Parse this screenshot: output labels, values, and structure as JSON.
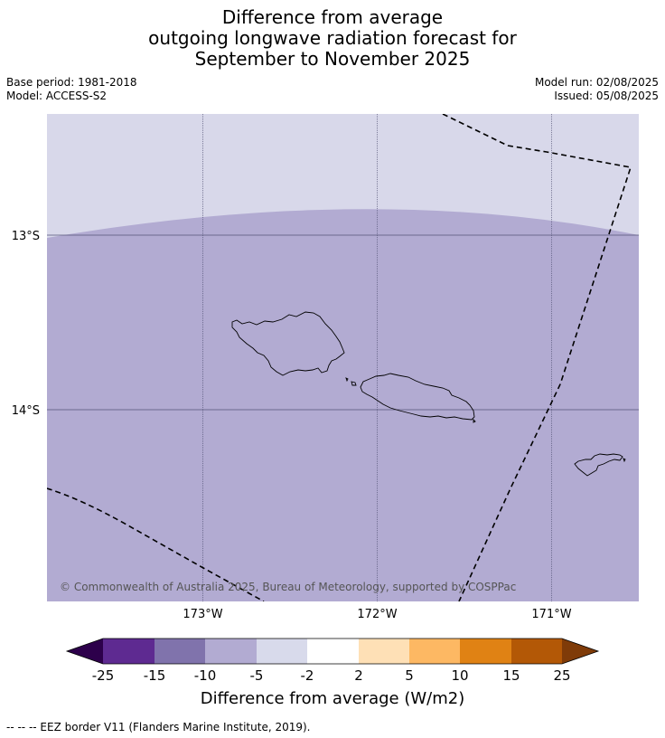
{
  "title": {
    "line1": "Difference from average",
    "line2": "outgoing longwave radiation forecast for",
    "line3": "September to November 2025"
  },
  "meta": {
    "base_period": "Base period: 1981-2018",
    "model": "Model: ACCESS-S2",
    "model_run": "Model run: 02/08/2025",
    "issued": "Issued: 05/08/2025"
  },
  "map": {
    "lat_labels": [
      "13°S",
      "14°S"
    ],
    "lon_labels": [
      "173°W",
      "172°W",
      "171°W"
    ],
    "copyright": "© Commonwealth of Australia 2025, Bureau of Meteorology, supported by COSPPac",
    "colors": {
      "light_band": "#d8d8ea",
      "main_fill": "#b2abd2",
      "gridline": "#555577",
      "eez": "#000000",
      "coast": "#000000"
    }
  },
  "colorbar": {
    "title": "Difference from average (W/m2)",
    "tick_labels": [
      "-25",
      "-15",
      "-10",
      "-5",
      "-2",
      "2",
      "5",
      "10",
      "15",
      "25"
    ],
    "colors": [
      "#2d004b",
      "#5e2a91",
      "#8073ac",
      "#b2abd2",
      "#d8daeb",
      "#ffffff",
      "#fee0b6",
      "#fdb863",
      "#e08214",
      "#b35806",
      "#7f3b08"
    ]
  },
  "footnote": "--  --  -- EEZ border V11 (Flanders Marine Institute, 2019)."
}
